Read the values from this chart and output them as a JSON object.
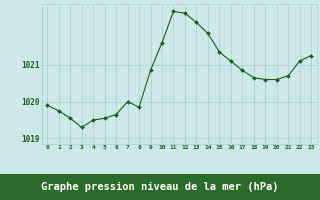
{
  "x": [
    0,
    1,
    2,
    3,
    4,
    5,
    6,
    7,
    8,
    9,
    10,
    11,
    12,
    13,
    14,
    15,
    16,
    17,
    18,
    19,
    20,
    21,
    22,
    23
  ],
  "y": [
    1019.9,
    1019.75,
    1019.55,
    1019.3,
    1019.5,
    1019.55,
    1019.65,
    1020.0,
    1019.85,
    1020.85,
    1021.6,
    1022.45,
    1022.4,
    1022.15,
    1021.85,
    1021.35,
    1021.1,
    1020.85,
    1020.65,
    1020.6,
    1020.6,
    1020.7,
    1021.1,
    1021.25
  ],
  "line_color": "#1a5c1a",
  "marker_color": "#1a5c1a",
  "bg_color": "#cce8e8",
  "plot_bg_color": "#cce8e8",
  "bottom_bar_color": "#2a6b2a",
  "grid_color": "#aacece",
  "ylim": [
    1018.85,
    1022.65
  ],
  "yticks": [
    1019,
    1020,
    1021
  ],
  "xticks": [
    0,
    1,
    2,
    3,
    4,
    5,
    6,
    7,
    8,
    9,
    10,
    11,
    12,
    13,
    14,
    15,
    16,
    17,
    18,
    19,
    20,
    21,
    22,
    23
  ],
  "xlabel": "Graphe pression niveau de la mer (hPa)",
  "xlabel_fontsize": 7.5,
  "axis_label_color": "#1a5c1a",
  "tick_label_color": "#1a5c1a",
  "xlabel_bg_color": "#2a6b2a",
  "xlabel_text_color": "#ffffff"
}
